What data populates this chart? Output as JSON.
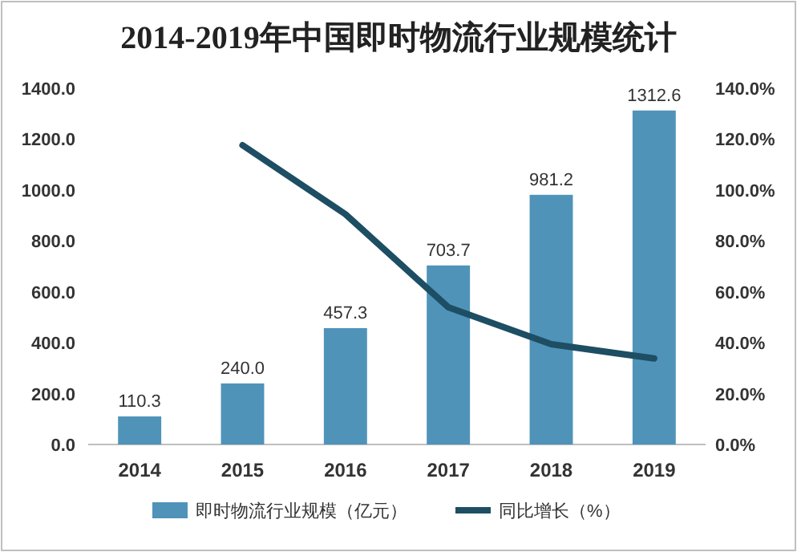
{
  "chart_data": {
    "type": "bar",
    "title": "2014-2019年中国即时物流行业规模统计",
    "categories": [
      "2014",
      "2015",
      "2016",
      "2017",
      "2018",
      "2019"
    ],
    "series": [
      {
        "name": "即时物流行业规模（亿元）",
        "color": "#4f93b9",
        "values": [
          110.3,
          240.0,
          457.3,
          703.7,
          981.2,
          1312.6
        ],
        "value_labels": [
          "110.3",
          "240.0",
          "457.3",
          "703.7",
          "981.2",
          "1312.6"
        ]
      },
      {
        "name": "同比增长（%）",
        "type": "line",
        "axis": "y2",
        "color": "#1d4e63",
        "values": [
          null,
          117.6,
          90.5,
          53.9,
          39.4,
          33.8
        ]
      }
    ],
    "ylim": [
      0,
      1400
    ],
    "yticks": [
      {
        "value": 0,
        "label": "0.0"
      },
      {
        "value": 200,
        "label": "200.0"
      },
      {
        "value": 400,
        "label": "400.0"
      },
      {
        "value": 600,
        "label": "600.0"
      },
      {
        "value": 800,
        "label": "800.0"
      },
      {
        "value": 1000,
        "label": "1000.0"
      },
      {
        "value": 1200,
        "label": "1200.0"
      },
      {
        "value": 1400,
        "label": "1400.0"
      }
    ],
    "y2lim": [
      0,
      140
    ],
    "y2ticks": [
      {
        "value": 0,
        "label": "0.0%"
      },
      {
        "value": 20,
        "label": "20.0%"
      },
      {
        "value": 40,
        "label": "40.0%"
      },
      {
        "value": 60,
        "label": "60.0%"
      },
      {
        "value": 80,
        "label": "80.0%"
      },
      {
        "value": 100,
        "label": "100.0%"
      },
      {
        "value": 120,
        "label": "120.0%"
      },
      {
        "value": 140,
        "label": "140.0%"
      }
    ],
    "grid": false,
    "legend": "bottom",
    "marker": "none",
    "line_style": "solid"
  }
}
